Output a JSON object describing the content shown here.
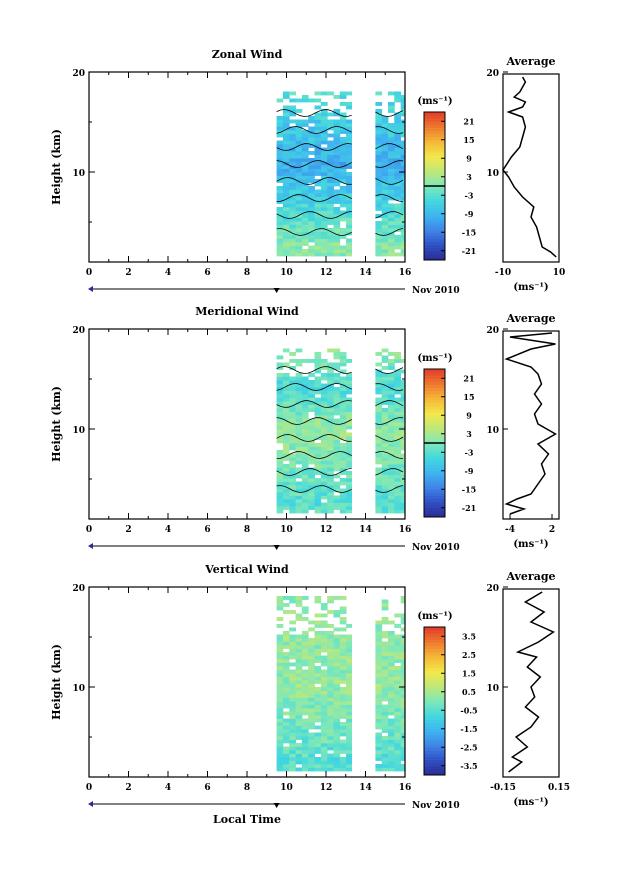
{
  "chart_data": [
    {
      "type": "heatmap",
      "title": "Zonal Wind",
      "ylabel": "Height (km)",
      "units_label": "(ms⁻¹)",
      "x_ticks": [
        "0",
        "2",
        "4",
        "6",
        "8",
        "10",
        "12",
        "14",
        "16"
      ],
      "xlim": [
        0,
        16
      ],
      "y_ticks": [
        "10",
        "20"
      ],
      "ylim": [
        1,
        20
      ],
      "date_label": "Nov 2010",
      "data_time_ranges": [
        [
          9.5,
          13.3
        ],
        [
          14.5,
          16
        ]
      ],
      "contour_level": 0,
      "colorbar": {
        "ticks": [
          "21",
          "15",
          "9",
          "3",
          "-3",
          "-9",
          "-15",
          "-21"
        ],
        "range": [
          -24,
          24
        ]
      },
      "profile_samples": [
        {
          "height": 2.5,
          "value": 1
        },
        {
          "height": 10.5,
          "value": -10
        },
        {
          "height": 16,
          "value": -5
        },
        {
          "height": 19,
          "value": -2
        }
      ],
      "average": {
        "title": "Average",
        "x_ticks": [
          "-10",
          "10"
        ],
        "xlim": [
          -10,
          10
        ],
        "xlabel": "(ms⁻¹)",
        "profile": [
          {
            "height": 1.5,
            "value": 9
          },
          {
            "height": 2,
            "value": 7
          },
          {
            "height": 2.5,
            "value": 4
          },
          {
            "height": 3.5,
            "value": 3
          },
          {
            "height": 4.5,
            "value": 2
          },
          {
            "height": 5.5,
            "value": 0
          },
          {
            "height": 6.5,
            "value": 1
          },
          {
            "height": 7.5,
            "value": -3
          },
          {
            "height": 8.5,
            "value": -6
          },
          {
            "height": 9.5,
            "value": -8
          },
          {
            "height": 10.2,
            "value": -10
          },
          {
            "height": 11.5,
            "value": -7
          },
          {
            "height": 12.5,
            "value": -4
          },
          {
            "height": 13.5,
            "value": -3
          },
          {
            "height": 14.5,
            "value": -2
          },
          {
            "height": 15.5,
            "value": -3
          },
          {
            "height": 16,
            "value": -8
          },
          {
            "height": 16.5,
            "value": -3
          },
          {
            "height": 17,
            "value": -2
          },
          {
            "height": 17.5,
            "value": -6
          },
          {
            "height": 18,
            "value": -4
          },
          {
            "height": 18.5,
            "value": -3
          },
          {
            "height": 19,
            "value": -2
          },
          {
            "height": 19.5,
            "value": -3
          }
        ]
      }
    },
    {
      "type": "heatmap",
      "title": "Meridional Wind",
      "ylabel": "Height (km)",
      "units_label": "(ms⁻¹)",
      "x_ticks": [
        "0",
        "2",
        "4",
        "6",
        "8",
        "10",
        "12",
        "14",
        "16"
      ],
      "xlim": [
        0,
        16
      ],
      "y_ticks": [
        "10",
        "20"
      ],
      "ylim": [
        1,
        20
      ],
      "date_label": "Nov 2010",
      "data_time_ranges": [
        [
          9.5,
          13.3
        ],
        [
          14.5,
          16
        ]
      ],
      "contour_level": 0,
      "colorbar": {
        "ticks": [
          "21",
          "15",
          "9",
          "3",
          "-3",
          "-9",
          "-15",
          "-21"
        ],
        "range": [
          -24,
          24
        ]
      },
      "profile_samples": [
        {
          "height": 2.5,
          "value": -3
        },
        {
          "height": 9.5,
          "value": 2
        },
        {
          "height": 14,
          "value": -4
        },
        {
          "height": 18,
          "value": 2
        }
      ],
      "average": {
        "title": "Average",
        "x_ticks": [
          "-4",
          "2"
        ],
        "xlim": [
          -5,
          3
        ],
        "xlabel": "(ms⁻¹)",
        "profile": [
          {
            "height": 1.5,
            "value": -4
          },
          {
            "height": 2,
            "value": -2
          },
          {
            "height": 2.5,
            "value": -4.5
          },
          {
            "height": 3,
            "value": -3
          },
          {
            "height": 3.5,
            "value": -1
          },
          {
            "height": 4.5,
            "value": 0
          },
          {
            "height": 5.5,
            "value": 1
          },
          {
            "height": 6.5,
            "value": 0.5
          },
          {
            "height": 7.5,
            "value": 1.5
          },
          {
            "height": 8.5,
            "value": 0
          },
          {
            "height": 9.5,
            "value": 2.5
          },
          {
            "height": 10.5,
            "value": 0
          },
          {
            "height": 11.5,
            "value": -0.5
          },
          {
            "height": 12.5,
            "value": 0.5
          },
          {
            "height": 13.5,
            "value": -0.5
          },
          {
            "height": 14.5,
            "value": 0.5
          },
          {
            "height": 15.5,
            "value": 0
          },
          {
            "height": 16.2,
            "value": -1
          },
          {
            "height": 17,
            "value": -4.5
          },
          {
            "height": 18,
            "value": -1
          },
          {
            "height": 18.5,
            "value": 2.5
          },
          {
            "height": 19.2,
            "value": -4
          },
          {
            "height": 19.6,
            "value": 2
          }
        ]
      }
    },
    {
      "type": "heatmap",
      "title": "Vertical Wind",
      "ylabel": "Height (km)",
      "xlabel": "Local Time",
      "units_label": "(ms⁻¹)",
      "x_ticks": [
        "0",
        "2",
        "4",
        "6",
        "8",
        "10",
        "12",
        "14",
        "16"
      ],
      "xlim": [
        0,
        16
      ],
      "y_ticks": [
        "10",
        "20"
      ],
      "ylim": [
        1,
        20
      ],
      "date_label": "Nov 2010",
      "data_time_ranges": [
        [
          9.5,
          13.3
        ],
        [
          14.5,
          16
        ]
      ],
      "colorbar": {
        "ticks": [
          "3.5",
          "2.5",
          "1.5",
          "0.5",
          "-0.5",
          "-1.5",
          "-2.5",
          "-3.5"
        ],
        "range": [
          -4,
          4
        ]
      },
      "profile_samples": [
        {
          "height": 2.5,
          "value": -0.5
        },
        {
          "height": 10,
          "value": 0.3
        },
        {
          "height": 18,
          "value": 0.2
        }
      ],
      "average": {
        "title": "Average",
        "x_ticks": [
          "-0.15",
          "0.15"
        ],
        "xlim": [
          -0.15,
          0.15
        ],
        "xlabel": "(ms⁻¹)",
        "profile": [
          {
            "height": 1.5,
            "value": -0.12
          },
          {
            "height": 2.5,
            "value": -0.05
          },
          {
            "height": 3,
            "value": -0.1
          },
          {
            "height": 4,
            "value": -0.02
          },
          {
            "height": 5,
            "value": -0.08
          },
          {
            "height": 6,
            "value": 0.0
          },
          {
            "height": 7,
            "value": 0.04
          },
          {
            "height": 8,
            "value": -0.03
          },
          {
            "height": 9,
            "value": 0.02
          },
          {
            "height": 10,
            "value": 0.0
          },
          {
            "height": 11,
            "value": 0.05
          },
          {
            "height": 12,
            "value": -0.02
          },
          {
            "height": 13,
            "value": 0.03
          },
          {
            "height": 13.5,
            "value": -0.07
          },
          {
            "height": 14.5,
            "value": 0.04
          },
          {
            "height": 15.5,
            "value": 0.12
          },
          {
            "height": 16.5,
            "value": 0.0
          },
          {
            "height": 17.5,
            "value": 0.07
          },
          {
            "height": 18.5,
            "value": -0.03
          },
          {
            "height": 19.5,
            "value": 0.06
          }
        ]
      }
    }
  ],
  "colors": {
    "colormap": [
      "#2b2c8f",
      "#2f4fc4",
      "#3f84e6",
      "#3fb4f0",
      "#42d7df",
      "#7ee8b8",
      "#bfe87a",
      "#f2e84a",
      "#f5b838",
      "#ee7a2e",
      "#e33b2a"
    ]
  }
}
